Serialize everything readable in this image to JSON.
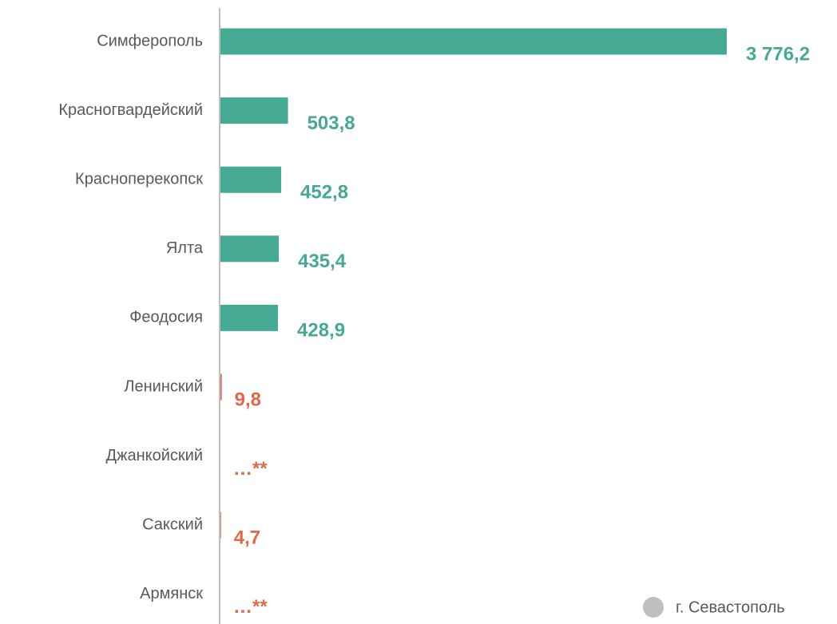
{
  "chart_data": {
    "type": "barh",
    "categories": [
      "Симферополь",
      "Красногвардейский",
      "Красноперекопск",
      "Ялта",
      "Феодосия",
      "Ленинский",
      "Джанкойский",
      "Сакский",
      "Армянск"
    ],
    "values": [
      3776.2,
      503.8,
      452.8,
      435.4,
      428.9,
      9.8,
      null,
      4.7,
      null
    ],
    "value_labels": [
      "3 776,2",
      "503,8",
      "452,8",
      "435,4",
      "428,9",
      "9,8",
      "…**",
      "4,7",
      "…**"
    ],
    "colors": [
      "#45a994",
      "#45a994",
      "#45a994",
      "#45a994",
      "#45a994",
      "#e0694a",
      "#e0694a",
      "#e0694a",
      "#e0694a"
    ],
    "xlim": [
      0,
      3800
    ],
    "legend": {
      "label": "г. Севастополь",
      "color": "#bfbfbf"
    }
  }
}
